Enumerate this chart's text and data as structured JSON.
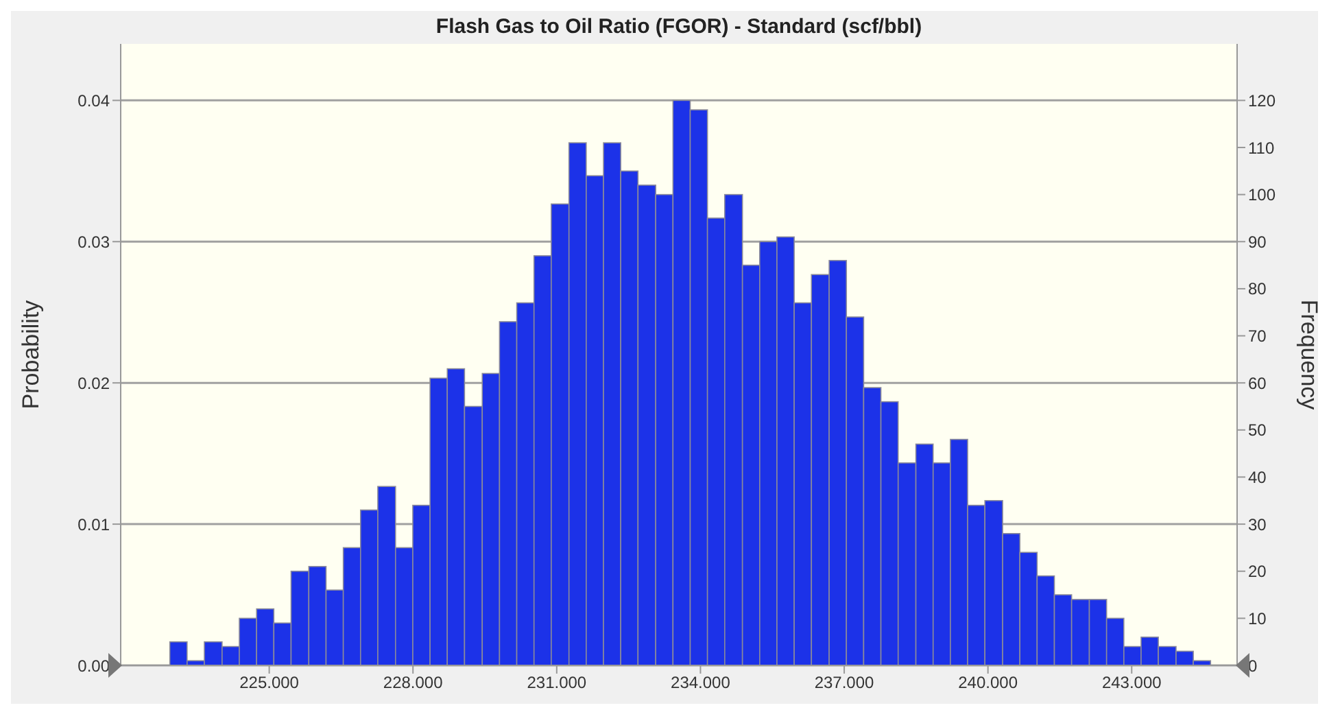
{
  "chart_data": {
    "type": "histogram",
    "title": "Flash Gas to Oil Ratio (FGOR) - Standard (scf/bbl)",
    "ylabel": "Probability",
    "y2label": "Frequency",
    "bins": [
      222.92,
      223.28,
      223.64,
      224.01,
      224.37,
      224.73,
      225.09,
      225.45,
      225.82,
      226.18,
      226.54,
      226.9,
      227.26,
      227.63,
      227.99,
      228.35,
      228.71,
      229.07,
      229.44,
      229.8,
      230.16,
      230.52,
      230.88,
      231.25,
      231.61,
      231.97,
      232.33,
      232.69,
      233.06,
      233.42,
      233.78,
      234.14,
      234.5,
      234.87,
      235.23,
      235.59,
      235.95,
      236.31,
      236.68,
      237.04,
      237.4,
      237.76,
      238.12,
      238.49,
      238.85,
      239.21,
      239.57,
      239.93,
      240.3,
      240.66,
      241.02,
      241.38,
      241.74,
      242.11,
      242.47,
      242.83,
      243.19,
      243.55,
      243.92,
      244.28,
      244.64
    ],
    "series": [
      {
        "color": "#1c32e8",
        "axis": "y2",
        "values": [
          5,
          1,
          5,
          4,
          10,
          12,
          9,
          20,
          21,
          16,
          25,
          33,
          38,
          25,
          34,
          61,
          63,
          55,
          62,
          73,
          77,
          87,
          98,
          111,
          104,
          111,
          105,
          102,
          100,
          120,
          118,
          95,
          100,
          85,
          90,
          91,
          77,
          83,
          86,
          74,
          59,
          56,
          43,
          47,
          43,
          48,
          34,
          35,
          28,
          24,
          19,
          15,
          14,
          14,
          10,
          4,
          6,
          4,
          3,
          1
        ]
      }
    ],
    "xlim": [
      221.9,
      245.2
    ],
    "xticks": [
      {
        "value": 225,
        "label": "225.000"
      },
      {
        "value": 228,
        "label": "228.000"
      },
      {
        "value": 231,
        "label": "231.000"
      },
      {
        "value": 234,
        "label": "234.000"
      },
      {
        "value": 237,
        "label": "237.000"
      },
      {
        "value": 240,
        "label": "240.000"
      },
      {
        "value": 243,
        "label": "243.000"
      }
    ],
    "ylim": [
      0,
      0.044
    ],
    "yticks": [
      {
        "value": 0,
        "label": "0.00"
      },
      {
        "value": 0.01,
        "label": "0.01"
      },
      {
        "value": 0.02,
        "label": "0.02"
      },
      {
        "value": 0.03,
        "label": "0.03"
      },
      {
        "value": 0.04,
        "label": "0.04"
      }
    ],
    "y2lim": [
      0,
      132
    ],
    "y2ticks": [
      0,
      10,
      20,
      30,
      40,
      50,
      60,
      70,
      80,
      90,
      100,
      110,
      120
    ],
    "grid": "y"
  }
}
